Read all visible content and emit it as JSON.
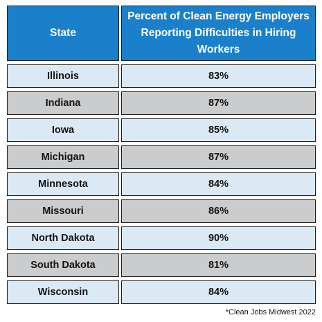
{
  "chart_data": {
    "type": "table",
    "columns": [
      "State",
      "Percent of Clean Energy Employers Reporting Difficulties in Hiring Workers"
    ],
    "rows": [
      {
        "state": "Illinois",
        "percent": "83%"
      },
      {
        "state": "Indiana",
        "percent": "87%"
      },
      {
        "state": "Iowa",
        "percent": "85%"
      },
      {
        "state": "Michigan",
        "percent": "87%"
      },
      {
        "state": "Minnesota",
        "percent": "84%"
      },
      {
        "state": "Missouri",
        "percent": "86%"
      },
      {
        "state": "North Dakota",
        "percent": "90%"
      },
      {
        "state": "South Dakota",
        "percent": "81%"
      },
      {
        "state": "Wisconsin",
        "percent": "84%"
      }
    ],
    "values": [
      83,
      87,
      85,
      87,
      84,
      86,
      90,
      81,
      84
    ],
    "footnote": "*Clean Jobs Midwest 2022"
  },
  "colors": {
    "header_bg": "#1b80cc",
    "row_light": "#dbe9f5",
    "row_dark": "#cbcccd"
  }
}
